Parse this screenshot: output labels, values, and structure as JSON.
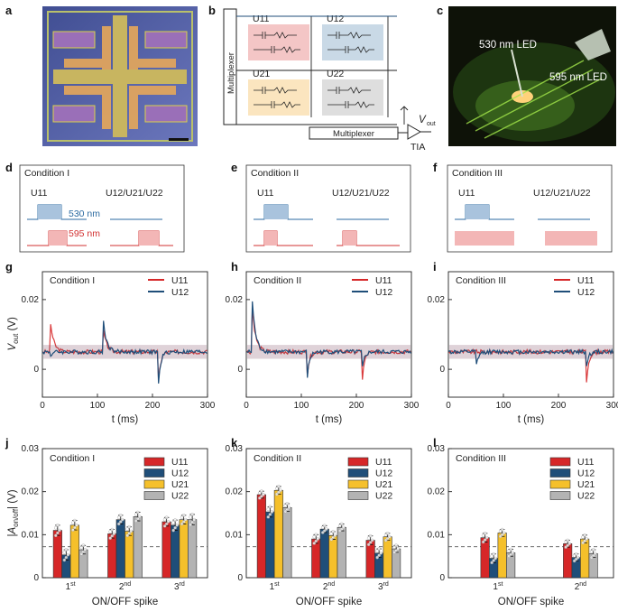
{
  "panel_labels": [
    "a",
    "b",
    "c",
    "d",
    "e",
    "f",
    "g",
    "h",
    "i",
    "j",
    "k",
    "l"
  ],
  "colors": {
    "U11": "#d62728",
    "U12": "#1f4e79",
    "U21": "#f5c02b",
    "U22": "#b3b3b3",
    "blue_pulse": "#a9c3dd",
    "red_pulse": "#f3b6b6",
    "blue_text": "#2b6aa0",
    "red_text": "#d23030"
  },
  "schematic": {
    "multiplexer_left": "Multiplexer",
    "multiplexer_bottom": "Multiplexer",
    "cells": [
      "U11",
      "U12",
      "U21",
      "U22"
    ],
    "vout_symbol": "V",
    "vout_sub": "out",
    "tia": "TIA"
  },
  "photo": {
    "led1": "530 nm LED",
    "led2": "595 nm LED"
  },
  "conditions": [
    {
      "title": "Condition I",
      "left": "U11",
      "right": "U12/U21/U22",
      "blue": "530 nm",
      "red": "595 nm",
      "kind": "I"
    },
    {
      "title": "Condition II",
      "left": "U11",
      "right": "U12/U21/U22",
      "kind": "II"
    },
    {
      "title": "Condition III",
      "left": "U11",
      "right": "U12/U21/U22",
      "kind": "III"
    }
  ],
  "chart_data": [
    {
      "type": "line",
      "title": "Condition I",
      "xlabel": "t (ms)",
      "ylabel_main": "V",
      "ylabel_sub": "out",
      "ylabel_unit": "(V)",
      "xlim": [
        0,
        300
      ],
      "ylim": [
        -0.008,
        0.028
      ],
      "xticks": [
        "0",
        "100",
        "200",
        "300"
      ],
      "yticks": [
        "0",
        "0.02"
      ],
      "legend": [
        "U11",
        "U12"
      ],
      "baseline": 0.005,
      "spikes": {
        "U11": [
          [
            15,
            0.013
          ],
          [
            110,
            0.012
          ],
          [
            210,
            -0.006
          ]
        ],
        "U12": [
          [
            15,
            0.004
          ],
          [
            110,
            0.015
          ],
          [
            210,
            -0.007
          ]
        ]
      }
    },
    {
      "type": "line",
      "title": "Condition II",
      "xlabel": "t (ms)",
      "xlim": [
        0,
        300
      ],
      "ylim": [
        -0.008,
        0.028
      ],
      "xticks": [
        "0",
        "100",
        "200",
        "300"
      ],
      "yticks": [
        "0",
        "0.02"
      ],
      "legend": [
        "U11",
        "U12"
      ],
      "baseline": 0.005,
      "spikes": {
        "U11": [
          [
            10,
            0.02
          ],
          [
            110,
            -0.003
          ],
          [
            210,
            -0.005
          ]
        ],
        "U12": [
          [
            10,
            0.022
          ],
          [
            110,
            -0.004
          ],
          [
            210,
            -0.001
          ]
        ]
      }
    },
    {
      "type": "line",
      "title": "Condition III",
      "xlabel": "t (ms)",
      "xlim": [
        0,
        300
      ],
      "ylim": [
        -0.008,
        0.028
      ],
      "xticks": [
        "0",
        "100",
        "200",
        "300"
      ],
      "yticks": [
        "0",
        "0.02"
      ],
      "legend": [
        "U11",
        "U12"
      ],
      "baseline": 0.005,
      "spikes": {
        "U11": [
          [
            50,
            0.005
          ],
          [
            250,
            -0.006
          ]
        ],
        "U12": [
          [
            50,
            0.0
          ],
          [
            250,
            0.0
          ]
        ]
      }
    },
    {
      "type": "bar",
      "title": "Condition I",
      "xlabel": "ON/OFF spike",
      "ylabel": "|A_on/off| (V)",
      "ylim": [
        0,
        0.03
      ],
      "yticks": [
        "0",
        "0.01",
        "0.02",
        "0.03"
      ],
      "categories": [
        [
          "1",
          "st"
        ],
        [
          "2",
          "nd"
        ],
        [
          "3",
          "rd"
        ]
      ],
      "threshold": 0.0072,
      "series": [
        {
          "name": "U11",
          "values": [
            0.011,
            0.0102,
            0.013
          ],
          "err": [
            0.0012,
            0.001,
            0.001
          ]
        },
        {
          "name": "U12",
          "values": [
            0.0053,
            0.0135,
            0.0122
          ],
          "err": [
            0.0012,
            0.001,
            0.0012
          ]
        },
        {
          "name": "U21",
          "values": [
            0.0122,
            0.0108,
            0.0135
          ],
          "err": [
            0.0011,
            0.001,
            0.001
          ]
        },
        {
          "name": "U22",
          "values": [
            0.0065,
            0.0142,
            0.0135
          ],
          "err": [
            0.001,
            0.001,
            0.0012
          ]
        }
      ]
    },
    {
      "type": "bar",
      "title": "Condition II",
      "xlabel": "ON/OFF spike",
      "ylim": [
        0,
        0.03
      ],
      "yticks": [
        "0",
        "0.01",
        "0.02",
        "0.03"
      ],
      "categories": [
        [
          "1",
          "st"
        ],
        [
          "2",
          "nd"
        ],
        [
          "3",
          "rd"
        ]
      ],
      "threshold": 0.0072,
      "series": [
        {
          "name": "U11",
          "values": [
            0.0193,
            0.009,
            0.0087
          ],
          "err": [
            0.0008,
            0.001,
            0.001
          ]
        },
        {
          "name": "U12",
          "values": [
            0.0153,
            0.0113,
            0.0057
          ],
          "err": [
            0.0012,
            0.0008,
            0.001
          ]
        },
        {
          "name": "U21",
          "values": [
            0.0203,
            0.0098,
            0.0095
          ],
          "err": [
            0.0009,
            0.0009,
            0.0008
          ]
        },
        {
          "name": "U22",
          "values": [
            0.0163,
            0.0117,
            0.0067
          ],
          "err": [
            0.0009,
            0.0008,
            0.0008
          ]
        }
      ]
    },
    {
      "type": "bar",
      "title": "Condition III",
      "xlabel": "ON/OFF spike",
      "ylim": [
        0,
        0.03
      ],
      "yticks": [
        "0",
        "0.01",
        "0.02",
        "0.03"
      ],
      "categories": [
        [
          "1",
          "st"
        ],
        [
          "2",
          "nd"
        ]
      ],
      "threshold": 0.0072,
      "series": [
        {
          "name": "U11",
          "values": [
            0.0093,
            0.0079
          ],
          "err": [
            0.001,
            0.0008
          ]
        },
        {
          "name": "U12",
          "values": [
            0.0045,
            0.0047
          ],
          "err": [
            0.001,
            0.0008
          ]
        },
        {
          "name": "U21",
          "values": [
            0.0104,
            0.009
          ],
          "err": [
            0.0008,
            0.0009
          ]
        },
        {
          "name": "U22",
          "values": [
            0.0058,
            0.0056
          ],
          "err": [
            0.0008,
            0.0009
          ]
        }
      ]
    }
  ]
}
